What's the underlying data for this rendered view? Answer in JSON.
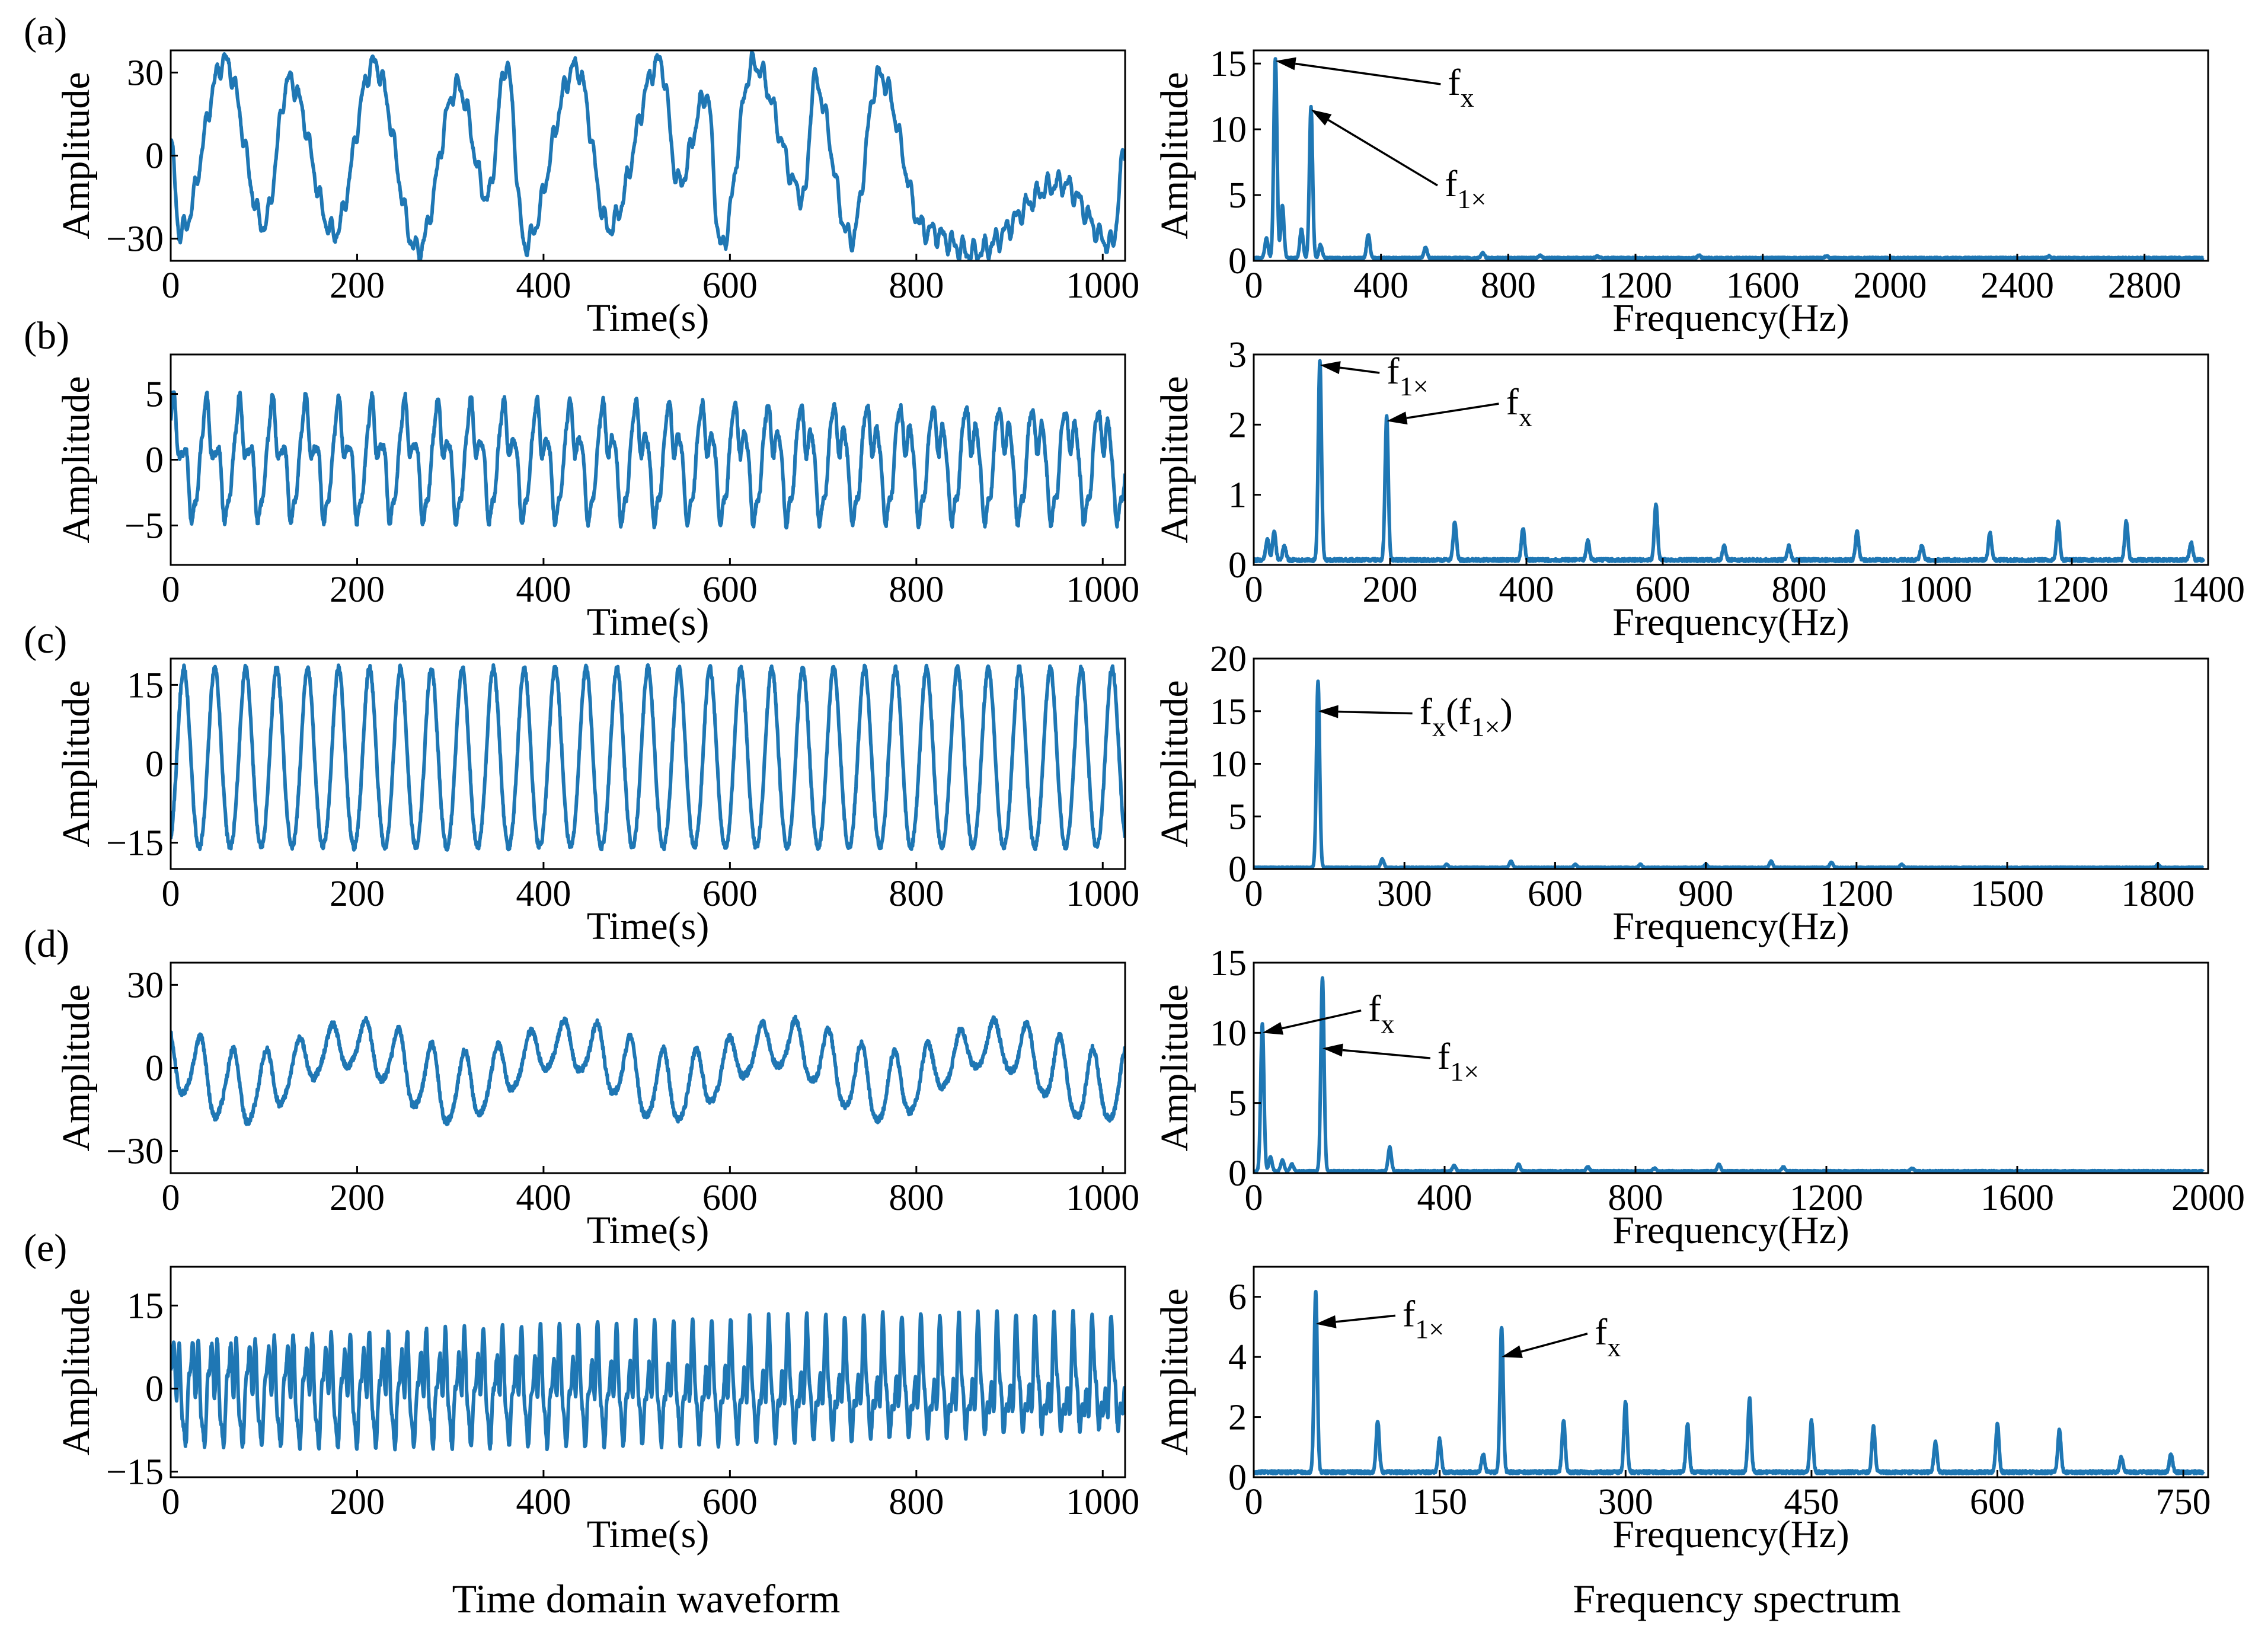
{
  "captions": {
    "time": "Time domain waveform",
    "freq": "Frequency spectrum"
  },
  "colors": {
    "trace": "#1f77b4"
  },
  "chart_data": [
    {
      "panel": "(a)",
      "kind": "time",
      "type": "line",
      "xlabel": "Time(s)",
      "ylabel": "Amplitude",
      "xlim": [
        0,
        1024
      ],
      "ylim": [
        -38,
        38
      ],
      "xticks": [
        0,
        200,
        400,
        600,
        800,
        1000
      ],
      "yticks": [
        -30,
        0,
        30
      ],
      "peak_times": [
        58,
        127,
        218,
        308,
        360,
        435,
        525,
        575,
        625,
        690,
        760
      ],
      "peak_values": [
        34,
        27,
        33,
        25,
        33,
        32,
        34,
        22,
        33,
        27,
        29
      ],
      "trough_times": [
        10,
        100,
        175,
        265,
        340,
        380,
        470,
        545,
        590,
        680,
        730,
        810,
        860,
        955,
        1010
      ],
      "trough_values": [
        -28,
        -25,
        -28,
        -34,
        -15,
        -32,
        -26,
        -10,
        -33,
        -15,
        -30,
        -27,
        -35,
        -10,
        -32
      ],
      "annotations": []
    },
    {
      "panel": "(a)",
      "kind": "freq",
      "type": "line",
      "xlabel": "Frequency(Hz)",
      "ylabel": "Amplitude",
      "xlim": [
        0,
        3000
      ],
      "ylim": [
        0,
        16
      ],
      "xticks": [
        0,
        400,
        800,
        1200,
        1600,
        2000,
        2400,
        2800
      ],
      "yticks": [
        0,
        5,
        10,
        15
      ],
      "baseline": 0.15,
      "peaks": [
        [
          40,
          1.5
        ],
        [
          68,
          15.2
        ],
        [
          90,
          4
        ],
        [
          150,
          2.2
        ],
        [
          180,
          11.5
        ],
        [
          210,
          1.0
        ],
        [
          360,
          1.8
        ],
        [
          540,
          0.8
        ],
        [
          720,
          0.4
        ],
        [
          900,
          0.2
        ],
        [
          1080,
          0.15
        ],
        [
          1400,
          0.2
        ],
        [
          1800,
          0.15
        ],
        [
          2500,
          0.15
        ]
      ],
      "annotations": [
        {
          "base": "f",
          "sub": "x",
          "paren": "",
          "x": 68,
          "y": 15.2,
          "tx": 610,
          "ty": 12.8
        },
        {
          "base": "f",
          "sub": "1×",
          "paren": "",
          "x": 180,
          "y": 11.5,
          "tx": 600,
          "ty": 5.1
        }
      ]
    },
    {
      "panel": "(b)",
      "kind": "time",
      "type": "line",
      "xlabel": "Time(s)",
      "ylabel": "Amplitude",
      "xlim": [
        0,
        1024
      ],
      "ylim": [
        -8,
        8
      ],
      "xticks": [
        0,
        200,
        400,
        600,
        800,
        1000
      ],
      "yticks": [
        -5,
        0,
        5
      ],
      "components": [
        {
          "period": 35.5,
          "amp": 3.4
        },
        {
          "period": 17.7,
          "amp": 1.5
        },
        {
          "period": 11.8,
          "amp": 0.9
        },
        {
          "period": 7.1,
          "amp": 0.5
        }
      ],
      "annotations": []
    },
    {
      "panel": "(b)",
      "kind": "freq",
      "type": "line",
      "xlabel": "Frequency(Hz)",
      "ylabel": "Amplitude",
      "xlim": [
        0,
        1400
      ],
      "ylim": [
        0,
        3
      ],
      "xticks": [
        0,
        200,
        400,
        600,
        800,
        1000,
        1200,
        1400
      ],
      "yticks": [
        0,
        1,
        2,
        3
      ],
      "baseline": 0.05,
      "peaks": [
        [
          20,
          0.3
        ],
        [
          30,
          0.4
        ],
        [
          45,
          0.2
        ],
        [
          97,
          2.85
        ],
        [
          195,
          2.05
        ],
        [
          295,
          0.55
        ],
        [
          395,
          0.45
        ],
        [
          490,
          0.28
        ],
        [
          590,
          0.8
        ],
        [
          690,
          0.2
        ],
        [
          785,
          0.2
        ],
        [
          885,
          0.4
        ],
        [
          980,
          0.2
        ],
        [
          1080,
          0.38
        ],
        [
          1180,
          0.55
        ],
        [
          1280,
          0.55
        ],
        [
          1375,
          0.25
        ]
      ],
      "annotations": [
        {
          "base": "f",
          "sub": "1×",
          "paren": "",
          "x": 97,
          "y": 2.85,
          "tx": 195,
          "ty": 2.62
        },
        {
          "base": "f",
          "sub": "x",
          "paren": "",
          "x": 195,
          "y": 2.05,
          "tx": 370,
          "ty": 2.18
        }
      ]
    },
    {
      "panel": "(c)",
      "kind": "time",
      "type": "line",
      "xlabel": "Time(s)",
      "ylabel": "Amplitude",
      "xlim": [
        0,
        1024
      ],
      "ylim": [
        -20,
        20
      ],
      "xticks": [
        0,
        200,
        400,
        600,
        800,
        1000
      ],
      "yticks": [
        -15,
        0,
        15
      ],
      "components": [
        {
          "period": 33.2,
          "amp": 17.0
        },
        {
          "period": 16.6,
          "amp": 1.2
        }
      ],
      "annotations": []
    },
    {
      "panel": "(c)",
      "kind": "freq",
      "type": "line",
      "xlabel": "Frequency(Hz)",
      "ylabel": "Amplitude",
      "xlim": [
        0,
        1900
      ],
      "ylim": [
        0,
        20
      ],
      "xticks": [
        0,
        300,
        600,
        900,
        1200,
        1500,
        1800
      ],
      "yticks": [
        0,
        5,
        10,
        15,
        20
      ],
      "baseline": 0.1,
      "peaks": [
        [
          128,
          17.7
        ],
        [
          256,
          0.8
        ],
        [
          384,
          0.3
        ],
        [
          512,
          0.6
        ],
        [
          640,
          0.3
        ],
        [
          770,
          0.3
        ],
        [
          900,
          0.3
        ],
        [
          1030,
          0.6
        ],
        [
          1150,
          0.5
        ],
        [
          1290,
          0.3
        ],
        [
          1800,
          0.3
        ]
      ],
      "annotations": [
        {
          "base": "f",
          "sub": "x",
          "paren": "f1×",
          "x": 128,
          "y": 15.0,
          "tx": 330,
          "ty": 14.0
        }
      ]
    },
    {
      "panel": "(d)",
      "kind": "time",
      "type": "line",
      "xlabel": "Time(s)",
      "ylabel": "Amplitude",
      "xlim": [
        0,
        1024
      ],
      "ylim": [
        -38,
        38
      ],
      "xticks": [
        0,
        200,
        400,
        600,
        800,
        1000
      ],
      "yticks": [
        -30,
        0,
        30
      ],
      "components": [
        {
          "period": 35.5,
          "amp": 10.5
        },
        {
          "period": 17.7,
          "amp": 1.5
        }
      ],
      "envelope_period": 230,
      "envelope_amp": 8,
      "annotations": []
    },
    {
      "panel": "(d)",
      "kind": "freq",
      "type": "line",
      "xlabel": "Frequency(Hz)",
      "ylabel": "Amplitude",
      "xlim": [
        0,
        2000
      ],
      "ylim": [
        0,
        15
      ],
      "xticks": [
        0,
        400,
        800,
        1200,
        1600,
        2000
      ],
      "yticks": [
        0,
        5,
        10,
        15
      ],
      "baseline": 0.1,
      "peaks": [
        [
          18,
          10.5
        ],
        [
          35,
          1.0
        ],
        [
          60,
          0.8
        ],
        [
          80,
          0.5
        ],
        [
          144,
          13.8
        ],
        [
          285,
          1.7
        ],
        [
          420,
          0.4
        ],
        [
          555,
          0.5
        ],
        [
          700,
          0.3
        ],
        [
          840,
          0.2
        ],
        [
          975,
          0.5
        ],
        [
          1110,
          0.3
        ],
        [
          1380,
          0.2
        ]
      ],
      "annotations": [
        {
          "base": "f",
          "sub": "x",
          "paren": "",
          "x": 18,
          "y": 10.0,
          "tx": 240,
          "ty": 11.0
        },
        {
          "base": "f",
          "sub": "1×",
          "paren": "",
          "x": 144,
          "y": 8.9,
          "tx": 385,
          "ty": 7.6
        }
      ]
    },
    {
      "panel": "(e)",
      "kind": "time",
      "type": "line",
      "xlabel": "Time(s)",
      "ylabel": "Amplitude",
      "xlim": [
        0,
        1024
      ],
      "ylim": [
        -16,
        22
      ],
      "xticks": [
        0,
        200,
        400,
        600,
        800,
        1000
      ],
      "yticks": [
        -15,
        0,
        15
      ],
      "components": [
        {
          "period": 20.5,
          "amp": 6.5
        },
        {
          "period": 10.2,
          "amp": 4.0
        },
        {
          "period": 5.1,
          "amp": 2.5
        },
        {
          "period": 6.8,
          "amp": 1.8
        }
      ],
      "annotations": []
    },
    {
      "panel": "(e)",
      "kind": "freq",
      "type": "line",
      "xlabel": "Frequency(Hz)",
      "ylabel": "Amplitude",
      "xlim": [
        0,
        770
      ],
      "ylim": [
        0,
        7
      ],
      "xticks": [
        0,
        150,
        300,
        450,
        600,
        750
      ],
      "yticks": [
        0,
        2,
        4,
        6
      ],
      "baseline": 0.12,
      "peaks": [
        [
          50,
          6.0
        ],
        [
          100,
          1.7
        ],
        [
          150,
          1.1
        ],
        [
          185,
          0.6
        ],
        [
          200,
          4.85
        ],
        [
          250,
          1.7
        ],
        [
          300,
          2.35
        ],
        [
          350,
          1.6
        ],
        [
          400,
          2.45
        ],
        [
          450,
          1.7
        ],
        [
          500,
          1.5
        ],
        [
          550,
          1.0
        ],
        [
          600,
          1.6
        ],
        [
          650,
          1.4
        ],
        [
          700,
          0.5
        ],
        [
          740,
          0.6
        ]
      ],
      "annotations": [
        {
          "base": "f",
          "sub": "1×",
          "paren": "",
          "x": 50,
          "y": 5.1,
          "tx": 120,
          "ty": 5.1
        },
        {
          "base": "f",
          "sub": "x",
          "paren": "",
          "x": 200,
          "y": 4.0,
          "tx": 275,
          "ty": 4.5
        }
      ]
    }
  ]
}
